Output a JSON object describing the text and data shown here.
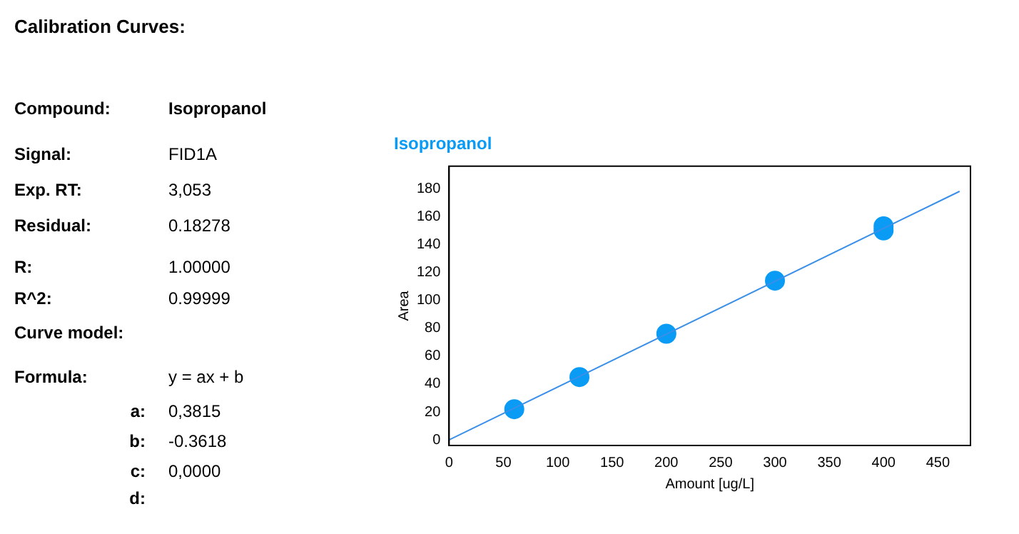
{
  "chart_data": {
    "type": "scatter",
    "title": "Isopropanol",
    "xlabel": "Amount [ug/L]",
    "ylabel": "Area",
    "annotations": [
      "Calibration Curves:",
      "Compound:",
      "Isopropanol",
      "Signal:",
      "FID1A",
      "Exp. RT:",
      "3,053",
      "Residual:",
      "0.18278",
      "R:",
      "1.00000",
      "R^2:",
      "0.99999",
      "Curve model:",
      "Formula:",
      "y = ax + b",
      "a:",
      "0,3815",
      "b:",
      "-0.3618",
      "c:",
      "0,0000",
      "d:"
    ],
    "series": [
      {
        "color": "#0a9bf5",
        "x": [
          60,
          120,
          200,
          300,
          400,
          400
        ],
        "values": [
          22,
          45,
          76,
          114,
          150,
          153
        ],
        "marker": "circle"
      },
      {
        "type": "line",
        "color": "#3a8fe8",
        "x": [
          0,
          470
        ],
        "values": [
          0,
          178
        ],
        "marker": "none",
        "line_style": "solid"
      }
    ],
    "xlim": [
      0,
      480
    ],
    "xticks": [
      0,
      50,
      100,
      150,
      200,
      250,
      300,
      350,
      400,
      450
    ],
    "ylim": [
      -4,
      196
    ],
    "yticks": [
      0,
      20,
      40,
      60,
      80,
      100,
      120,
      140,
      160,
      180
    ],
    "grid": false,
    "legend": false
  }
}
